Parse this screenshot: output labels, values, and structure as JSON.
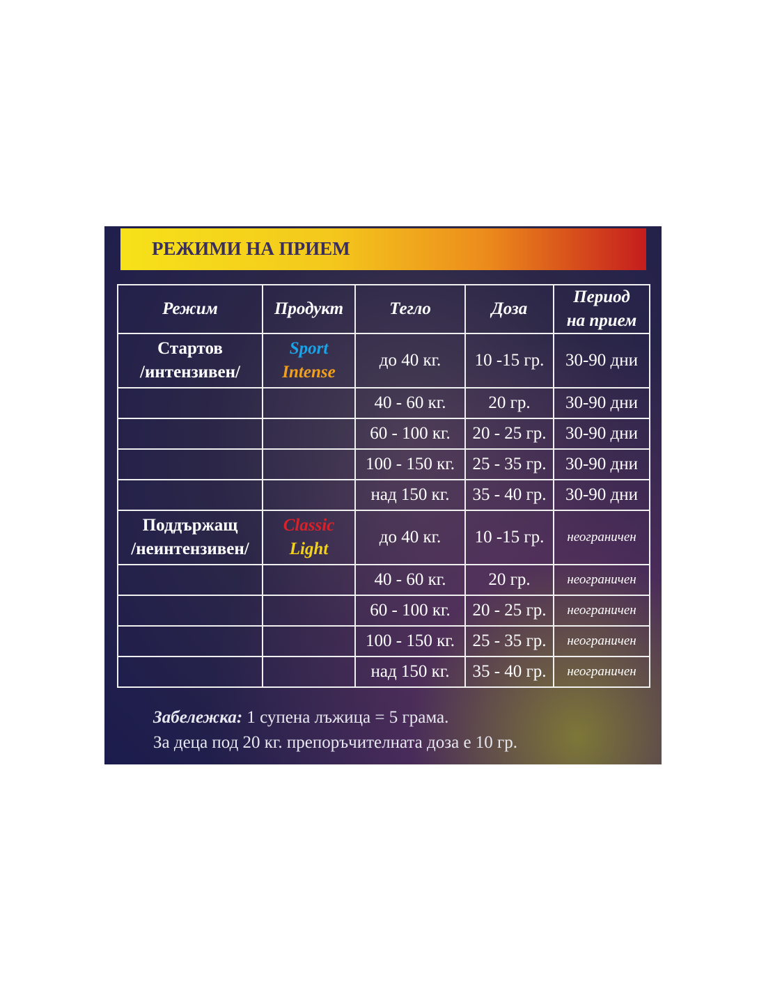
{
  "header": {
    "title": "РЕЖИМИ НА ПРИЕМ"
  },
  "table": {
    "columns": [
      "Режим",
      "Продукт",
      "Тегло",
      "Доза",
      [
        "Период",
        "на прием"
      ]
    ],
    "rows": [
      [
        [
          "Стартов",
          "/интензивен/"
        ],
        [
          "Sport",
          "Intense"
        ],
        "до 40 кг.",
        "10 -15 гр.",
        "30-90 дни"
      ],
      [
        null,
        null,
        "40 - 60 кг.",
        "20 гр.",
        "30-90 дни"
      ],
      [
        null,
        null,
        "60 - 100 кг.",
        "20 - 25 гр.",
        "30-90 дни"
      ],
      [
        null,
        null,
        "100 - 150 кг.",
        "25 - 35 гр.",
        "30-90 дни"
      ],
      [
        null,
        null,
        "над 150 кг.",
        "35 - 40 гр.",
        "30-90 дни"
      ],
      [
        [
          "Поддържащ",
          "/неинтензивен/"
        ],
        [
          "Classic",
          "Light"
        ],
        "до 40 кг.",
        "10 -15 гр.",
        "неограничен"
      ],
      [
        null,
        null,
        "40 - 60 кг.",
        "20 гр.",
        "неограничен"
      ],
      [
        null,
        null,
        "60 - 100 кг.",
        "20 - 25 гр.",
        "неограничен"
      ],
      [
        null,
        null,
        "100 - 150 кг.",
        "25 - 35 гр.",
        "неограничен"
      ],
      [
        null,
        null,
        "над 150 кг.",
        "35 - 40 гр.",
        "неограничен"
      ]
    ]
  },
  "note": {
    "label": "Забележка:",
    "text": "1 супена лъжица = 5 грама.",
    "line2": "За деца под 20 кг. препоръчителната доза е 10 гр."
  }
}
